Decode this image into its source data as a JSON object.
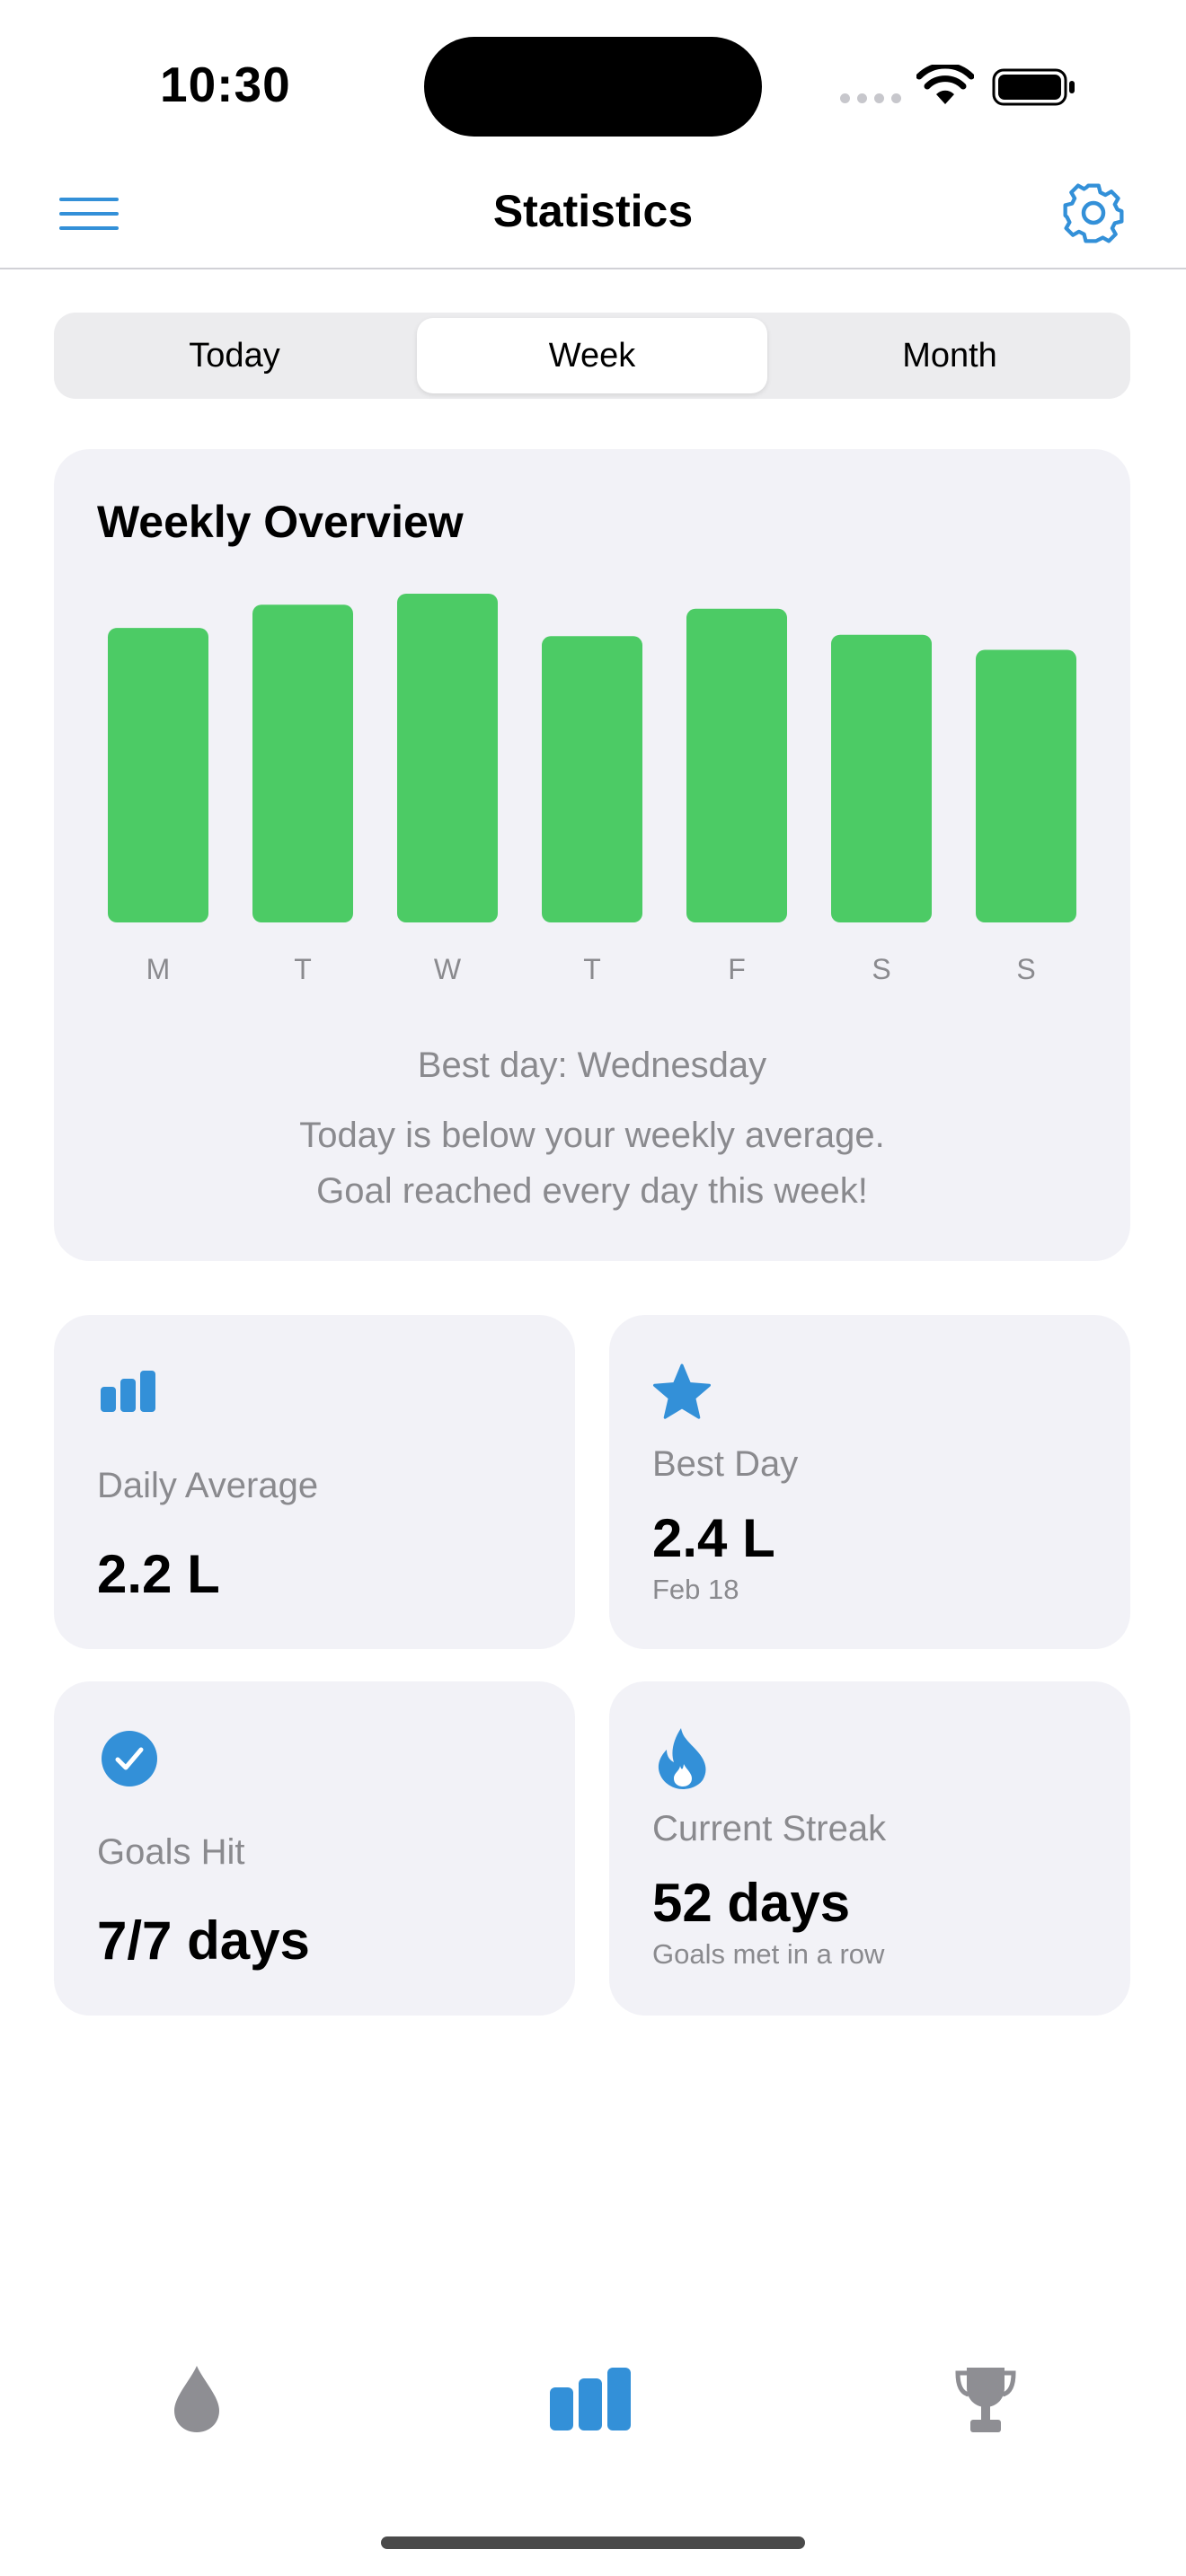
{
  "status_bar": {
    "time": "10:30"
  },
  "header": {
    "title": "Statistics"
  },
  "segments": [
    {
      "label": "Today",
      "active": false
    },
    {
      "label": "Week",
      "active": true
    },
    {
      "label": "Month",
      "active": false
    }
  ],
  "overview": {
    "title": "Weekly Overview",
    "best_day_line": "Best day: Wednesday",
    "below_average_line": "Today is below your weekly average.",
    "goal_line": "Goal reached every day this week!"
  },
  "chart_data": {
    "type": "bar",
    "categories": [
      "M",
      "T",
      "W",
      "T",
      "F",
      "S",
      "S"
    ],
    "values": [
      2.15,
      2.32,
      2.4,
      2.09,
      2.29,
      2.1,
      1.99
    ],
    "title": "Weekly Overview",
    "ylim": [
      0,
      2.4
    ],
    "grid": false,
    "bar_color": "#4ccb65"
  },
  "stats": [
    {
      "icon": "bar-chart-icon",
      "title": "Daily Average",
      "value": "2.2 L",
      "sub": ""
    },
    {
      "icon": "star-icon",
      "title": "Best Day",
      "value": "2.4 L",
      "sub": "Feb 18"
    },
    {
      "icon": "checkmark-circle-icon",
      "title": "Goals Hit",
      "value": "7/7 days",
      "sub": ""
    },
    {
      "icon": "flame-icon",
      "title": "Current Streak",
      "value": "52 days",
      "sub": "Goals met in a row"
    }
  ],
  "tab_bar": [
    {
      "icon": "water-drop-icon",
      "active": false
    },
    {
      "icon": "bar-chart-icon",
      "active": true
    },
    {
      "icon": "trophy-icon",
      "active": false
    }
  ],
  "colors": {
    "accent": "#3390d8",
    "bar": "#4ccb65",
    "inactive_tab": "#8e8e93",
    "card": "#f2f2f7"
  }
}
